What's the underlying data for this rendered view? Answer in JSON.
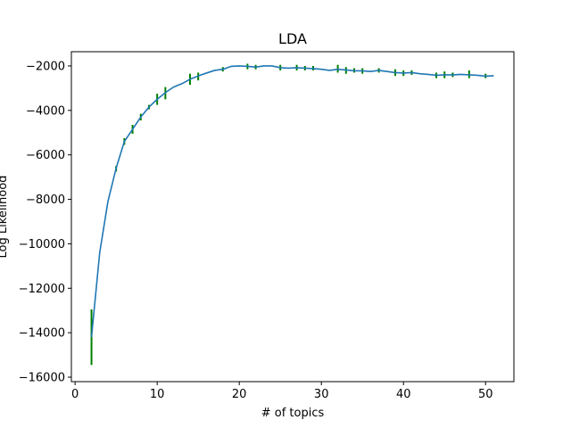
{
  "chart_data": {
    "type": "line",
    "title": "LDA",
    "xlabel": "# of topics",
    "ylabel": "Log Likelihood",
    "xlim": [
      -0.45,
      53.45
    ],
    "ylim": [
      -16200,
      -1360
    ],
    "xticks": [
      0,
      10,
      20,
      30,
      40,
      50
    ],
    "yticks": [
      -16000,
      -14000,
      -12000,
      -10000,
      -8000,
      -6000,
      -4000,
      -2000
    ],
    "xtick_labels": [
      "0",
      "10",
      "20",
      "30",
      "40",
      "50"
    ],
    "ytick_labels": [
      "−16000",
      "−14000",
      "−12000",
      "−10000",
      "−8000",
      "−6000",
      "−4000",
      "−2000"
    ],
    "grid": false,
    "colors": {
      "line": "#1f77b4",
      "error": "#008000"
    },
    "series": [
      {
        "x": [
          2,
          3,
          4,
          5,
          6,
          7,
          8,
          9,
          10,
          11,
          12,
          13,
          14,
          15,
          16,
          17,
          18,
          19,
          20,
          21,
          22,
          23,
          24,
          25,
          26,
          27,
          28,
          29,
          30,
          31,
          32,
          33,
          34,
          35,
          36,
          37,
          38,
          39,
          40,
          41,
          42,
          43,
          44,
          45,
          46,
          47,
          48,
          49,
          50,
          51
        ],
        "y": [
          -14200,
          -10400,
          -8100,
          -6600,
          -5400,
          -4850,
          -4300,
          -3850,
          -3500,
          -3200,
          -2950,
          -2800,
          -2600,
          -2450,
          -2320,
          -2200,
          -2150,
          -2020,
          -2000,
          -2020,
          -2050,
          -2000,
          -2000,
          -2080,
          -2100,
          -2080,
          -2100,
          -2120,
          -2150,
          -2200,
          -2150,
          -2180,
          -2220,
          -2220,
          -2250,
          -2200,
          -2250,
          -2300,
          -2320,
          -2300,
          -2350,
          -2380,
          -2420,
          -2400,
          -2400,
          -2380,
          -2400,
          -2420,
          -2460,
          -2440
        ],
        "errors": [
          {
            "x": 2,
            "low": -15450,
            "high": -12950
          },
          {
            "x": 5,
            "low": -6750,
            "high": -6500
          },
          {
            "x": 6,
            "low": -5550,
            "high": -5250
          },
          {
            "x": 7,
            "low": -5050,
            "high": -4650
          },
          {
            "x": 8,
            "low": -4450,
            "high": -4150
          },
          {
            "x": 9,
            "low": -3950,
            "high": -3750
          },
          {
            "x": 10,
            "low": -3750,
            "high": -3250
          },
          {
            "x": 11,
            "low": -3500,
            "high": -2950
          },
          {
            "x": 14,
            "low": -2850,
            "high": -2350
          },
          {
            "x": 15,
            "low": -2650,
            "high": -2300
          },
          {
            "x": 18,
            "low": -2250,
            "high": -2050
          },
          {
            "x": 21,
            "low": -2150,
            "high": -1900
          },
          {
            "x": 22,
            "low": -2150,
            "high": -1950
          },
          {
            "x": 25,
            "low": -2200,
            "high": -1950
          },
          {
            "x": 27,
            "low": -2200,
            "high": -1950
          },
          {
            "x": 28,
            "low": -2200,
            "high": -2000
          },
          {
            "x": 29,
            "low": -2200,
            "high": -2000
          },
          {
            "x": 32,
            "low": -2300,
            "high": -1950
          },
          {
            "x": 33,
            "low": -2350,
            "high": -2050
          },
          {
            "x": 34,
            "low": -2300,
            "high": -2100
          },
          {
            "x": 35,
            "low": -2350,
            "high": -2100
          },
          {
            "x": 37,
            "low": -2300,
            "high": -2100
          },
          {
            "x": 39,
            "low": -2450,
            "high": -2150
          },
          {
            "x": 40,
            "low": -2450,
            "high": -2200
          },
          {
            "x": 41,
            "low": -2400,
            "high": -2200
          },
          {
            "x": 44,
            "low": -2550,
            "high": -2300
          },
          {
            "x": 45,
            "low": -2550,
            "high": -2250
          },
          {
            "x": 46,
            "low": -2500,
            "high": -2300
          },
          {
            "x": 48,
            "low": -2550,
            "high": -2200
          },
          {
            "x": 50,
            "low": -2550,
            "high": -2350
          }
        ]
      }
    ]
  }
}
